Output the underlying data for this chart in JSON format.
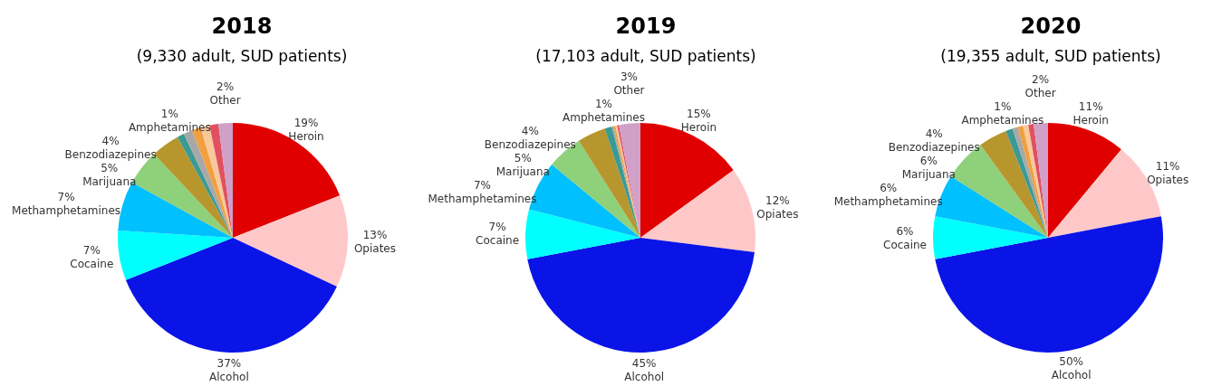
{
  "chart_data": [
    {
      "type": "pie",
      "title": "2018",
      "subtitle": "(9,330 adult, SUD patients)",
      "categories": [
        "Heroin",
        "Opiates",
        "Alcohol",
        "Cocaine",
        "Methamphetamines",
        "Marijuana",
        "Benzodiazepines",
        "Amphetamines",
        null,
        null,
        null,
        null,
        "Other"
      ],
      "values": [
        19,
        13,
        37,
        7,
        7,
        5,
        4,
        1,
        1.25,
        1.25,
        1.25,
        1.25,
        2
      ],
      "value_labels": [
        "19%",
        "13%",
        "37%",
        "7%",
        "7%",
        "5%",
        "4%",
        "1%",
        null,
        null,
        null,
        null,
        "2%"
      ],
      "colors": [
        "#e00000",
        "#ffc8c8",
        "#0a14e6",
        "#00ffff",
        "#00c0ff",
        "#8fd07a",
        "#b8962e",
        "#3a9a94",
        "#a8a8a8",
        "#f0a040",
        "#f8c89a",
        "#e05060",
        "#d0a0c8"
      ],
      "legend": false
    },
    {
      "type": "pie",
      "title": "2019",
      "subtitle": "(17,103 adult, SUD patients)",
      "categories": [
        "Heroin",
        "Opiates",
        "Alcohol",
        "Cocaine",
        "Methamphetamines",
        "Marijuana",
        "Benzodiazepines",
        "Amphetamines",
        null,
        null,
        null,
        null,
        "Other"
      ],
      "values": [
        15,
        12,
        45,
        7,
        7,
        5,
        4,
        1,
        0.25,
        0.25,
        0.25,
        0.25,
        3
      ],
      "value_labels": [
        "15%",
        "12%",
        "45%",
        "7%",
        "7%",
        "5%",
        "4%",
        "1%",
        null,
        null,
        null,
        null,
        "3%"
      ],
      "colors": [
        "#e00000",
        "#ffc8c8",
        "#0a14e6",
        "#00ffff",
        "#00c0ff",
        "#8fd07a",
        "#b8962e",
        "#3a9a94",
        "#a8a8a8",
        "#f0a040",
        "#f8c89a",
        "#e05060",
        "#d0a0c8"
      ],
      "legend": false
    },
    {
      "type": "pie",
      "title": "2020",
      "subtitle": "(19,355 adult, SUD patients)",
      "categories": [
        "Heroin",
        "Opiates",
        "Alcohol",
        "Cocaine",
        "Methamphetamines",
        "Marijuana",
        "Benzodiazepines",
        "Amphetamines",
        null,
        null,
        null,
        null,
        "Other"
      ],
      "values": [
        11,
        11,
        50,
        6,
        6,
        6,
        4,
        1,
        0.75,
        0.75,
        0.75,
        0.75,
        2
      ],
      "value_labels": [
        "11%",
        "11%",
        "50%",
        "6%",
        "6%",
        "6%",
        "4%",
        "1%",
        null,
        null,
        null,
        null,
        "2%"
      ],
      "colors": [
        "#e00000",
        "#ffc8c8",
        "#0a14e6",
        "#00ffff",
        "#00c0ff",
        "#8fd07a",
        "#b8962e",
        "#3a9a94",
        "#a8a8a8",
        "#f0a040",
        "#f8c89a",
        "#e05060",
        "#d0a0c8"
      ],
      "legend": false
    }
  ]
}
